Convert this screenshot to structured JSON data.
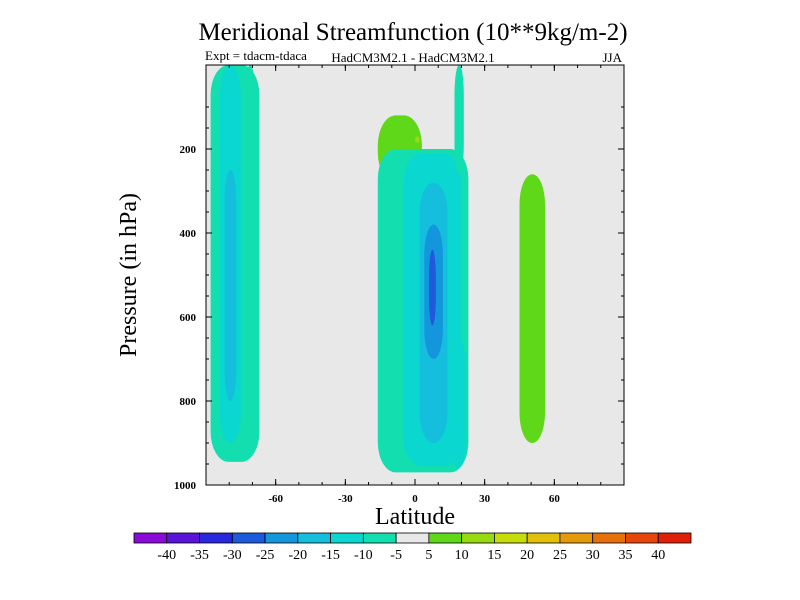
{
  "chart_data": {
    "type": "contour",
    "title": "Meridional Streamfunction (10**9kg/m-2)",
    "subtitle_left": "Expt = tdacm-tdaca",
    "subtitle_center": "HadCM3M2.1 - HadCM3M2.1",
    "subtitle_right": "JJA",
    "xlabel": "Latitude",
    "ylabel": "Pressure (in hPa)",
    "xlim": [
      -90,
      90
    ],
    "ylim": [
      1000,
      0
    ],
    "xticks": [
      -60,
      -30,
      0,
      30,
      60
    ],
    "xtick_labels": [
      "-60",
      "-30",
      "0",
      "30",
      "60"
    ],
    "yticks": [
      200,
      400,
      600,
      800,
      1000
    ],
    "ytick_labels": [
      "200",
      "400",
      "600",
      "800",
      "1000"
    ],
    "background": "#e8e8e8",
    "colorbar": {
      "levels": [
        -40,
        -35,
        -30,
        -25,
        -20,
        -15,
        -10,
        -5,
        5,
        10,
        15,
        20,
        25,
        30,
        35,
        40
      ],
      "labels": [
        "-40",
        "-35",
        "-30",
        "-25",
        "-20",
        "-15",
        "-10",
        "-5",
        "5",
        "10",
        "15",
        "20",
        "25",
        "30",
        "35",
        "40"
      ],
      "colors": [
        "#8a0ad8",
        "#5a14d8",
        "#2a28dc",
        "#1e5adc",
        "#1496dc",
        "#14bedc",
        "#0ad8d0",
        "#12deb0",
        "#e8e8e8",
        "#5ed818",
        "#98da10",
        "#c8dc0a",
        "#e0c00a",
        "#e49a0a",
        "#e6700a",
        "#e6460a",
        "#e02008"
      ]
    },
    "regions": [
      {
        "band": "-10 to -5",
        "color": "#12deb0",
        "lat_range": [
          -88,
          -67
        ],
        "p_range": [
          0,
          945
        ]
      },
      {
        "band": "-15 to -10",
        "color": "#0ad8d0",
        "lat_range": [
          -84,
          -75
        ],
        "p_range": [
          0,
          900
        ]
      },
      {
        "band": "-20 to -15",
        "color": "#14bedc",
        "lat_range": [
          -82,
          -77
        ],
        "p_range": [
          250,
          800
        ]
      },
      {
        "band": "-10 to -5",
        "color": "#12deb0",
        "lat_range": [
          -73,
          -69
        ],
        "p_range": [
          0,
          850
        ]
      },
      {
        "band": "5 to 10",
        "color": "#5ed818",
        "lat_range": [
          -16,
          3
        ],
        "p_range": [
          120,
          280
        ]
      },
      {
        "band": "10 to 15",
        "color": "#98da10",
        "lat_range": [
          0,
          2
        ],
        "p_range": [
          170,
          185
        ]
      },
      {
        "band": "-10 to -5",
        "color": "#12deb0",
        "lat_range": [
          -16,
          23
        ],
        "p_range": [
          200,
          970
        ]
      },
      {
        "band": "-15 to -10",
        "color": "#0ad8d0",
        "lat_range": [
          -5,
          20
        ],
        "p_range": [
          210,
          955
        ]
      },
      {
        "band": "-20 to -15",
        "color": "#14bedc",
        "lat_range": [
          2,
          14
        ],
        "p_range": [
          280,
          900
        ]
      },
      {
        "band": "-25 to -20",
        "color": "#1496dc",
        "lat_range": [
          4,
          12
        ],
        "p_range": [
          380,
          700
        ]
      },
      {
        "band": "-30 to -25",
        "color": "#1e5adc",
        "lat_range": [
          6,
          9
        ],
        "p_range": [
          440,
          620
        ]
      },
      {
        "band": "-15 to -10",
        "color": "#0ad8d0",
        "lat_range": [
          15,
          22
        ],
        "p_range": [
          650,
          960
        ]
      },
      {
        "band": "-10 to -5",
        "color": "#12deb0",
        "lat_range": [
          17,
          21
        ],
        "p_range": [
          0,
          260
        ]
      },
      {
        "band": "5 to 10",
        "color": "#5ed818",
        "lat_range": [
          45,
          56
        ],
        "p_range": [
          260,
          900
        ]
      }
    ]
  }
}
